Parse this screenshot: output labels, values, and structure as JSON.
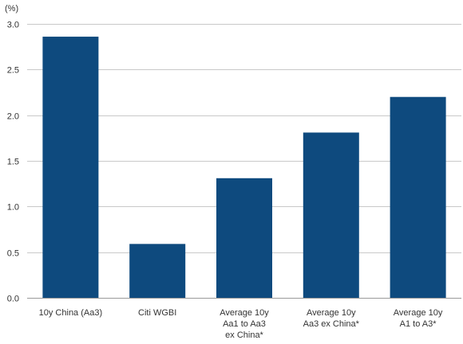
{
  "chart_data": {
    "type": "bar",
    "unit_label": "(%)",
    "categories": [
      [
        "10y China (Aa3)"
      ],
      [
        "Citi WGBI"
      ],
      [
        "Average 10y",
        "Aa1 to Aa3",
        "ex China*"
      ],
      [
        "Average 10y",
        "Aa3 ex China*"
      ],
      [
        "Average 10y",
        "A1 to A3*"
      ]
    ],
    "values": [
      2.86,
      0.59,
      1.31,
      1.81,
      2.2
    ],
    "yticks": [
      "0.0",
      "0.5",
      "1.0",
      "1.5",
      "2.0",
      "2.5",
      "3.0"
    ],
    "ylim": [
      0,
      3.0
    ],
    "grid": true,
    "colors": {
      "bar": "#0e4a7e"
    }
  }
}
